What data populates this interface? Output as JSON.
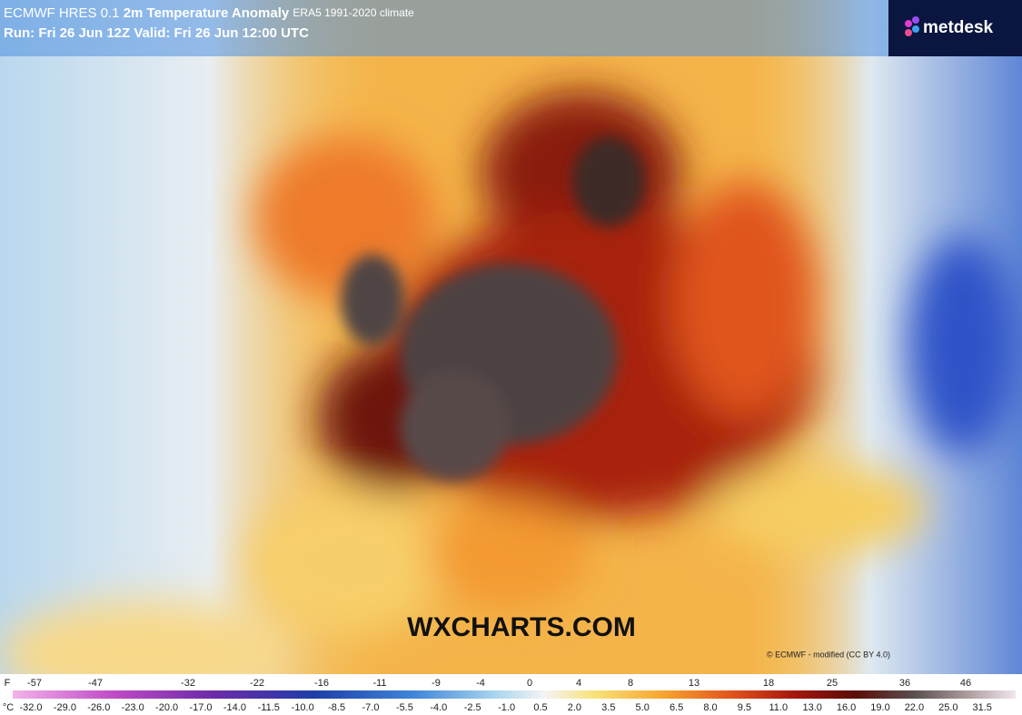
{
  "header": {
    "model": "ECMWF HRES 0.1",
    "title": "2m Temperature Anomaly",
    "climate": "ERA5 1991-2020 climate",
    "run": "Run: Fri 26 Jun 12Z Valid: Fri 26 Jun 12:00 UTC"
  },
  "logo": "metdesk",
  "watermark": "WXCHARTS.COM",
  "credit": "© ECMWF - modified (CC BY 4.0)",
  "legend": {
    "f_unit": "F",
    "f_labels": [
      "-57",
      "-47",
      "-32",
      "-22",
      "-16",
      "-11",
      "-9",
      "-4",
      "0",
      "4",
      "8",
      "13",
      "18",
      "25",
      "36",
      "46"
    ],
    "c_unit": "°C",
    "c_labels": [
      "-32.0",
      "-29.0",
      "-26.0",
      "-23.0",
      "-20.0",
      "-17.0",
      "-14.0",
      "-11.5",
      "-10.0",
      "-8.5",
      "-7.0",
      "-5.5",
      "-4.0",
      "-2.5",
      "-1.0",
      "0.5",
      "2.0",
      "3.5",
      "5.0",
      "6.5",
      "8.0",
      "9.5",
      "11.0",
      "13.0",
      "16.0",
      "19.0",
      "22.0",
      "25.0",
      "31.5"
    ]
  }
}
